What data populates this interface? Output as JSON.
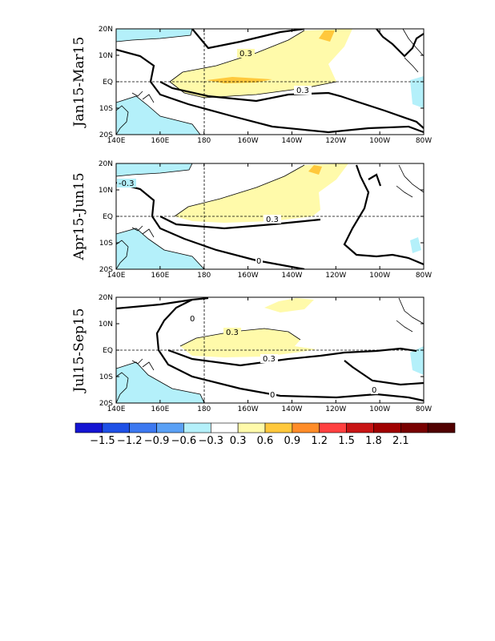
{
  "panels": [
    {
      "label": "Jan15-Mar15",
      "contour_labels": [
        "0.3",
        "0.3"
      ]
    },
    {
      "label": "Apr15-Jun15",
      "contour_labels": [
        "-0.3",
        "0.3",
        "0"
      ]
    },
    {
      "label": "Jul15-Sep15",
      "contour_labels": [
        "0",
        "0.3",
        "0.3",
        "0",
        "0"
      ]
    }
  ],
  "lon_ticks": [
    "140E",
    "160E",
    "180",
    "160W",
    "140W",
    "120W",
    "100W",
    "80W"
  ],
  "lat_ticks": [
    "20N",
    "10N",
    "EQ",
    "10S",
    "20S"
  ],
  "colorbar": {
    "ticks": [
      "-1.5",
      "-1.2",
      "-0.9",
      "-0.6",
      "-0.3",
      "0.3",
      "0.6",
      "0.9",
      "1.2",
      "1.5",
      "1.8",
      "2.1"
    ],
    "colors": [
      "#1414d2",
      "#1e50e6",
      "#3c78f0",
      "#5aa0f5",
      "#b4f0fa",
      "#ffffff",
      "#fffaaa",
      "#ffc83c",
      "#ff8c28",
      "#ff4040",
      "#c81414",
      "#a00000",
      "#780000",
      "#500000"
    ]
  },
  "fills": {
    "neg": "#b4f0fa",
    "pos1": "#fffaaa",
    "pos2": "#ffc83c",
    "pos3": "#ff8c28"
  }
}
